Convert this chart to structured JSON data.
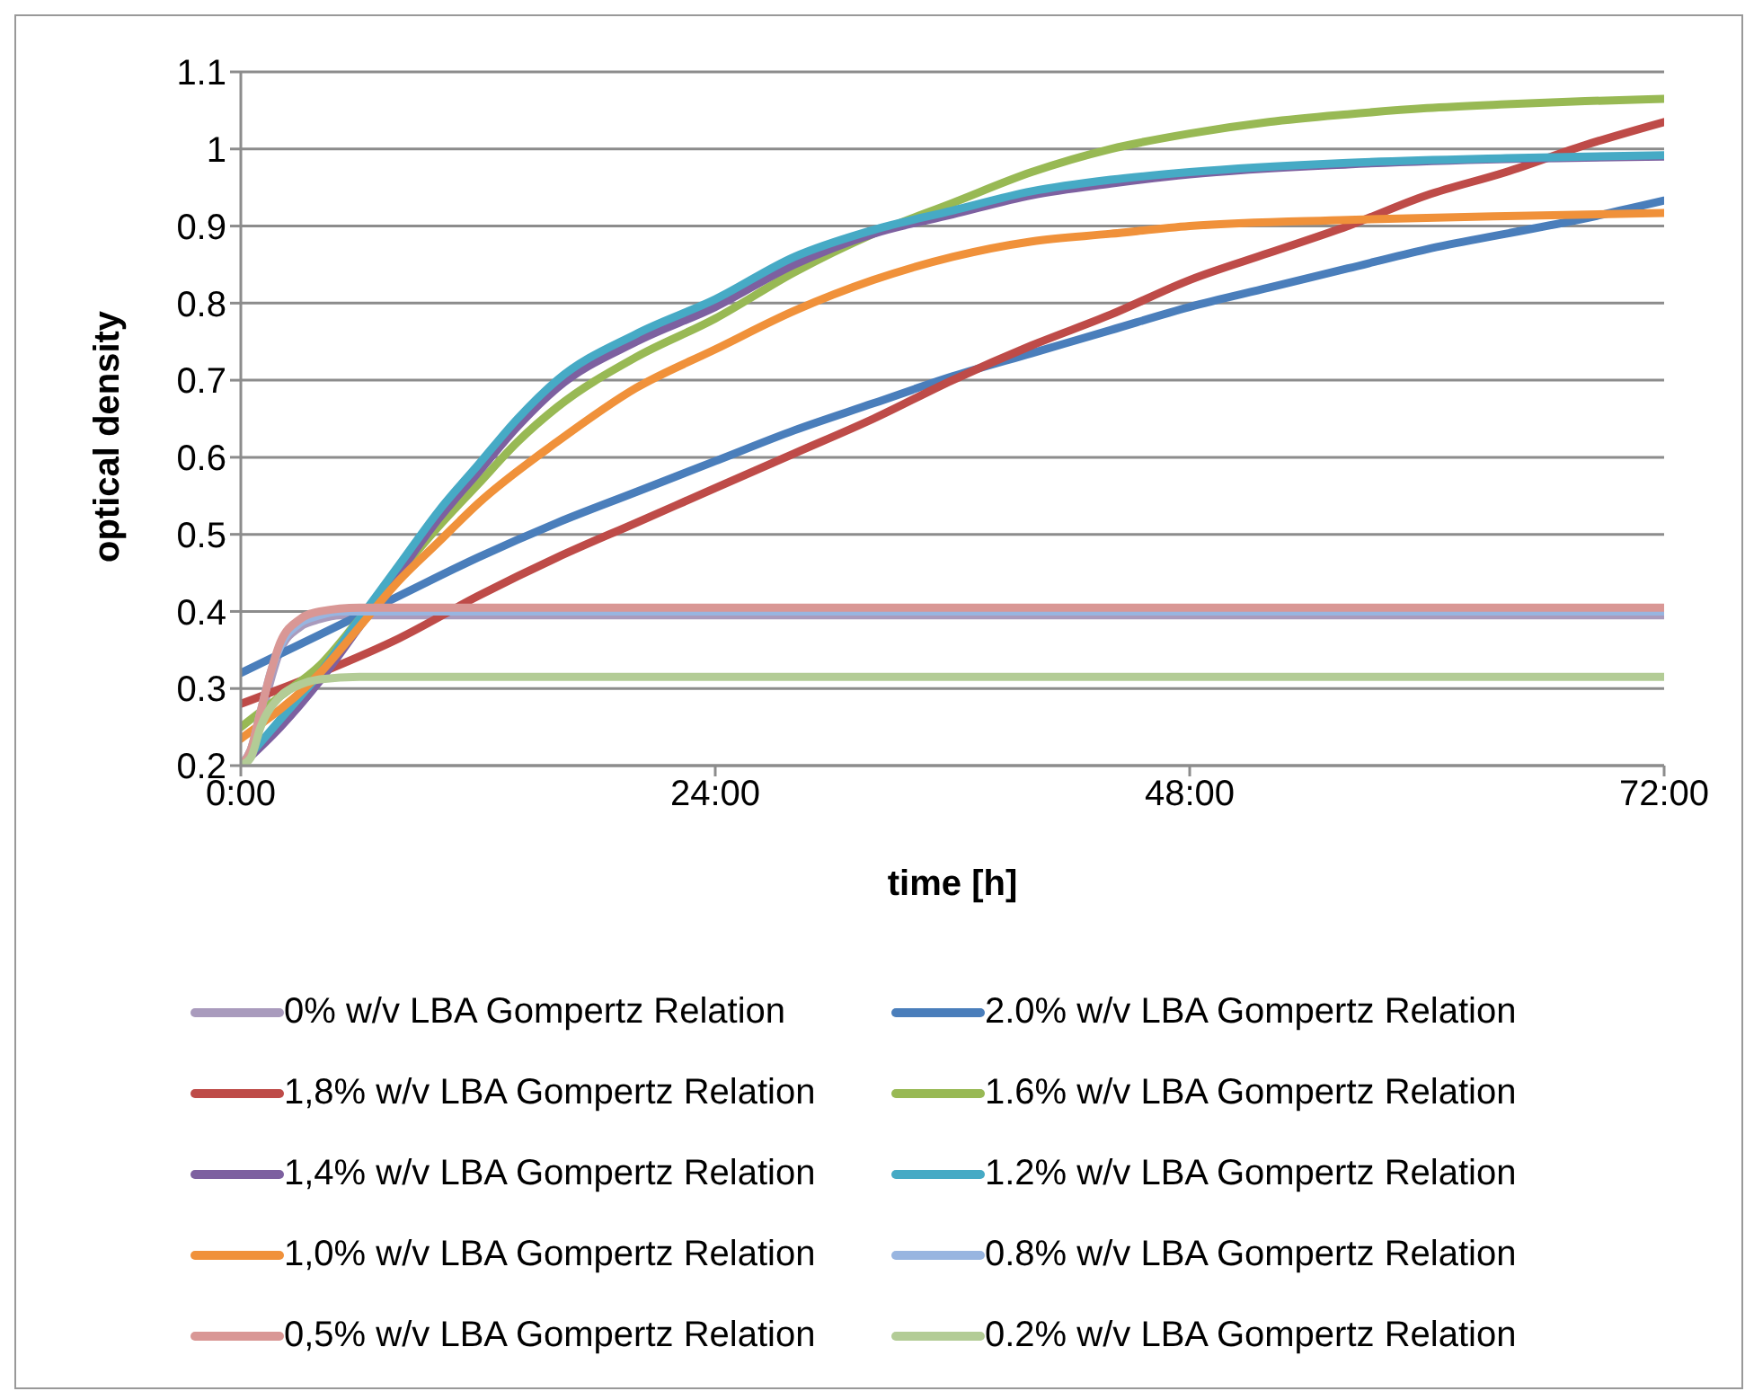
{
  "chart_data": {
    "type": "line",
    "xlabel": "time [h]",
    "ylabel": "optical density",
    "xlim": [
      0,
      72
    ],
    "xticks": [
      {
        "value": 0,
        "label": "0:00"
      },
      {
        "value": 24,
        "label": "24:00"
      },
      {
        "value": 48,
        "label": "48:00"
      },
      {
        "value": 72,
        "label": "72:00"
      }
    ],
    "ylim": [
      0.2,
      1.1
    ],
    "yticks": [
      0.2,
      0.3,
      0.4,
      0.5,
      0.6,
      0.7,
      0.8,
      0.9,
      1,
      1.1
    ],
    "grid": "y",
    "legend": "bottom",
    "marker": "none",
    "line_style": "solid",
    "series": [
      {
        "name": "0% w/v LBA Gompertz Relation",
        "color": "#a99bbd",
        "x": [
          0,
          0.5,
          1,
          1.5,
          2,
          3,
          4,
          5,
          6,
          72
        ],
        "values": [
          0.2,
          0.22,
          0.26,
          0.31,
          0.35,
          0.38,
          0.39,
          0.395,
          0.395,
          0.395
        ]
      },
      {
        "name": "2.0% w/v LBA Gompertz Relation",
        "color": "#4a7ebb",
        "x": [
          0,
          4,
          8,
          12,
          16,
          20,
          24,
          28,
          32,
          36,
          40,
          44,
          48,
          52,
          56,
          60,
          64,
          68,
          72
        ],
        "values": [
          0.32,
          0.37,
          0.42,
          0.47,
          0.515,
          0.555,
          0.595,
          0.635,
          0.67,
          0.705,
          0.735,
          0.765,
          0.795,
          0.82,
          0.845,
          0.87,
          0.89,
          0.91,
          0.933
        ]
      },
      {
        "name": "1,8% w/v LBA Gompertz Relation",
        "color": "#be4b48",
        "x": [
          0,
          4,
          8,
          12,
          16,
          20,
          24,
          28,
          32,
          36,
          40,
          44,
          48,
          52,
          56,
          60,
          64,
          68,
          72
        ],
        "values": [
          0.28,
          0.32,
          0.365,
          0.42,
          0.47,
          0.515,
          0.56,
          0.605,
          0.65,
          0.7,
          0.745,
          0.785,
          0.83,
          0.865,
          0.9,
          0.94,
          0.97,
          1.005,
          1.035
        ]
      },
      {
        "name": "1.6% w/v LBA Gompertz Relation",
        "color": "#98b954",
        "x": [
          0,
          2,
          4,
          6,
          8,
          10,
          12,
          14,
          16,
          20,
          24,
          28,
          32,
          36,
          40,
          44,
          48,
          52,
          56,
          60,
          64,
          68,
          72
        ],
        "values": [
          0.25,
          0.29,
          0.33,
          0.39,
          0.45,
          0.51,
          0.565,
          0.62,
          0.665,
          0.73,
          0.78,
          0.84,
          0.89,
          0.93,
          0.97,
          1,
          1.02,
          1.035,
          1.045,
          1.053,
          1.058,
          1.062,
          1.065
        ]
      },
      {
        "name": "1,4% w/v LBA Gompertz Relation",
        "color": "#7d60a0",
        "x": [
          0,
          2,
          4,
          6,
          8,
          10,
          12,
          14,
          16,
          20,
          24,
          28,
          32,
          36,
          40,
          44,
          48,
          56,
          64,
          72
        ],
        "values": [
          0.2,
          0.25,
          0.31,
          0.38,
          0.45,
          0.52,
          0.58,
          0.64,
          0.69,
          0.75,
          0.795,
          0.85,
          0.89,
          0.915,
          0.94,
          0.955,
          0.967,
          0.98,
          0.987,
          0.99
        ]
      },
      {
        "name": "1.2% w/v LBA Gompertz Relation",
        "color": "#46aac5",
        "x": [
          0,
          2,
          4,
          6,
          8,
          10,
          12,
          14,
          16,
          20,
          24,
          28,
          32,
          36,
          40,
          44,
          48,
          56,
          64,
          72
        ],
        "values": [
          0.2,
          0.26,
          0.32,
          0.39,
          0.46,
          0.53,
          0.59,
          0.65,
          0.7,
          0.76,
          0.805,
          0.86,
          0.895,
          0.92,
          0.945,
          0.96,
          0.97,
          0.982,
          0.988,
          0.992
        ]
      },
      {
        "name": "1,0% w/v LBA Gompertz Relation",
        "color": "#f0913a",
        "x": [
          0,
          4,
          6,
          8,
          10,
          12,
          16,
          20,
          24,
          28,
          32,
          36,
          40,
          44,
          48,
          56,
          64,
          72
        ],
        "values": [
          0.235,
          0.32,
          0.38,
          0.44,
          0.49,
          0.54,
          0.62,
          0.69,
          0.74,
          0.79,
          0.83,
          0.86,
          0.88,
          0.89,
          0.9,
          0.908,
          0.913,
          0.917
        ]
      },
      {
        "name": "0.8% w/v LBA Gompertz Relation",
        "color": "#98b5e0",
        "x": [
          0,
          0.5,
          1,
          1.5,
          2,
          3,
          4,
          5,
          6,
          72
        ],
        "values": [
          0.2,
          0.22,
          0.27,
          0.32,
          0.355,
          0.385,
          0.395,
          0.4,
          0.4,
          0.4
        ]
      },
      {
        "name": "0,5% w/v LBA Gompertz Relation",
        "color": "#d99795",
        "x": [
          0,
          0.5,
          1,
          1.5,
          2,
          3,
          4,
          6,
          72
        ],
        "values": [
          0.2,
          0.22,
          0.27,
          0.32,
          0.36,
          0.39,
          0.4,
          0.405,
          0.405
        ]
      },
      {
        "name": "0.2% w/v LBA Gompertz Relation",
        "color": "#b3cc96",
        "x": [
          0,
          0.5,
          1,
          2,
          3,
          4,
          6,
          72
        ],
        "values": [
          0.2,
          0.21,
          0.25,
          0.29,
          0.305,
          0.312,
          0.315,
          0.315
        ]
      }
    ]
  }
}
